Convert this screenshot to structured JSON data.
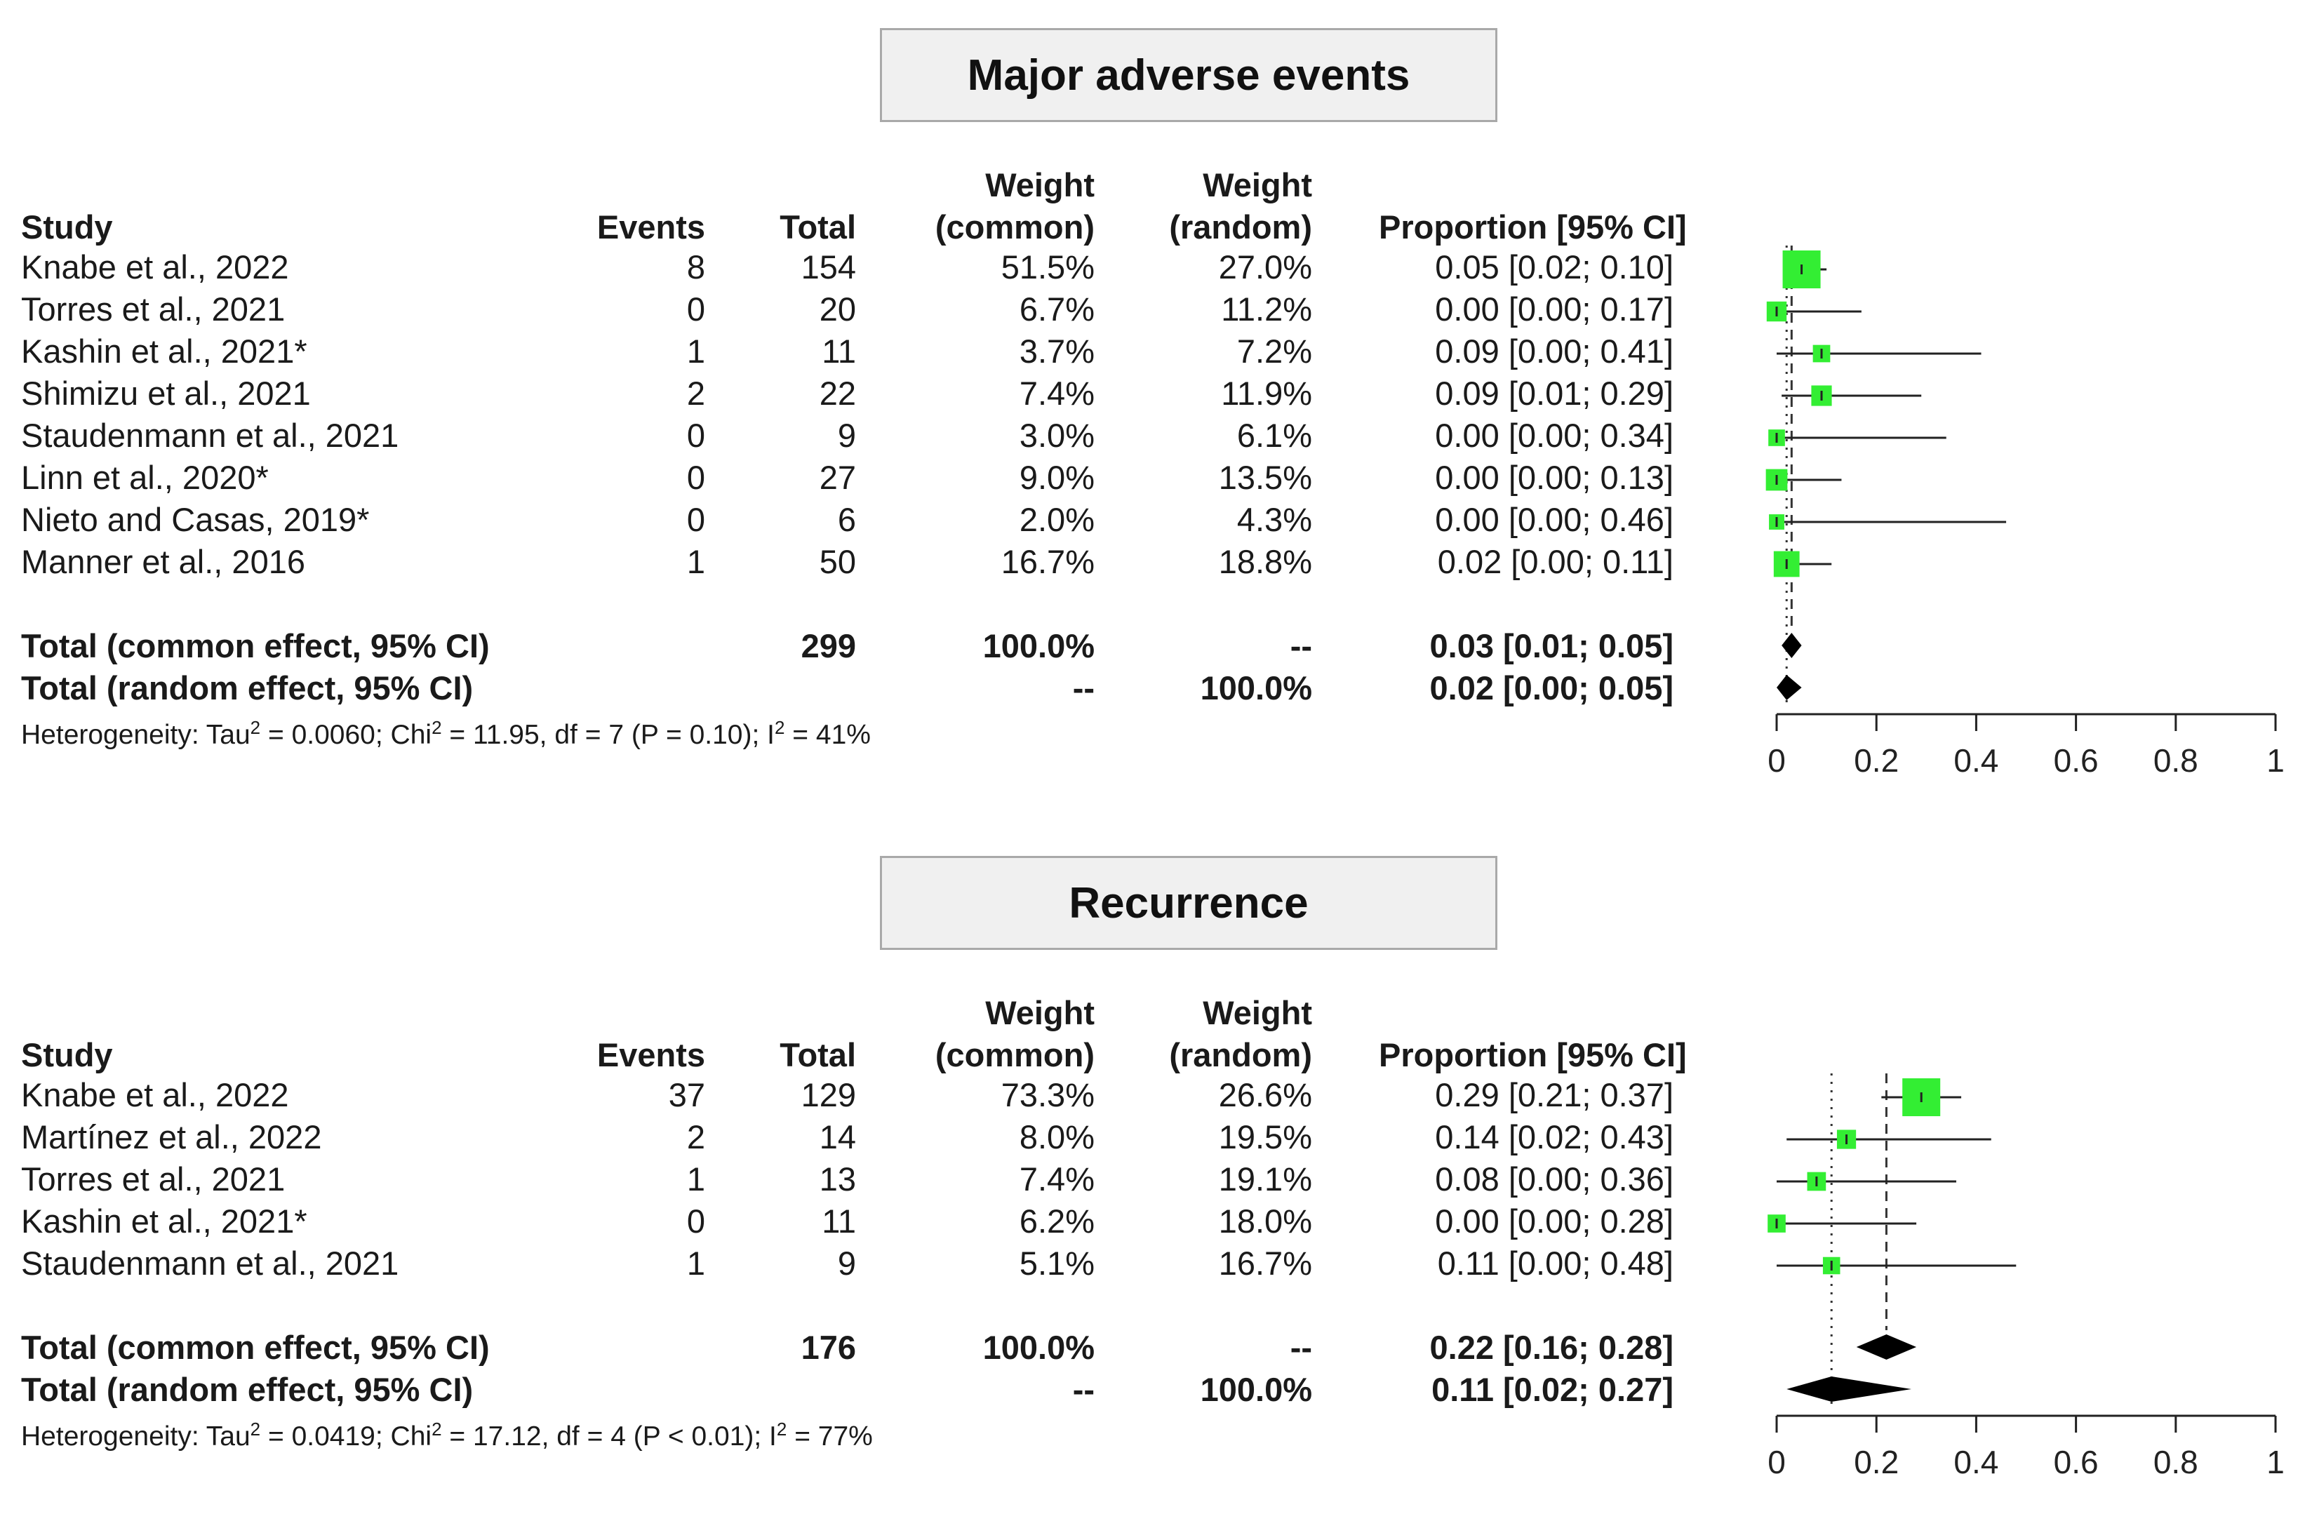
{
  "columns": {
    "study": "Study",
    "events": "Events",
    "total": "Total",
    "weight": "Weight",
    "common": "(common)",
    "random": "(random)",
    "proportion": "Proportion [95% CI]"
  },
  "panels": [
    {
      "title": "Major adverse events",
      "rows": [
        {
          "study": "Knabe et al., 2022",
          "events": "8",
          "total": "154",
          "w_common": "51.5%",
          "w_random": "27.0%",
          "ci": "0.05 [0.02; 0.10]"
        },
        {
          "study": "Torres et al., 2021",
          "events": "0",
          "total": "20",
          "w_common": "6.7%",
          "w_random": "11.2%",
          "ci": "0.00 [0.00; 0.17]"
        },
        {
          "study": "Kashin et al., 2021*",
          "events": "1",
          "total": "11",
          "w_common": "3.7%",
          "w_random": "7.2%",
          "ci": "0.09 [0.00; 0.41]"
        },
        {
          "study": "Shimizu et al., 2021",
          "events": "2",
          "total": "22",
          "w_common": "7.4%",
          "w_random": "11.9%",
          "ci": "0.09 [0.01; 0.29]"
        },
        {
          "study": "Staudenmann et al., 2021",
          "events": "0",
          "total": "9",
          "w_common": "3.0%",
          "w_random": "6.1%",
          "ci": "0.00 [0.00; 0.34]"
        },
        {
          "study": "Linn et al., 2020*",
          "events": "0",
          "total": "27",
          "w_common": "9.0%",
          "w_random": "13.5%",
          "ci": "0.00 [0.00; 0.13]"
        },
        {
          "study": "Nieto and Casas, 2019*",
          "events": "0",
          "total": "6",
          "w_common": "2.0%",
          "w_random": "4.3%",
          "ci": "0.00 [0.00; 0.46]"
        },
        {
          "study": "Manner et al., 2016",
          "events": "1",
          "total": "50",
          "w_common": "16.7%",
          "w_random": "18.8%",
          "ci": "0.02 [0.00; 0.11]"
        }
      ],
      "common": {
        "label": "Total (common effect, 95% CI)",
        "total": "299",
        "w_common": "100.0%",
        "w_random": "--",
        "ci": "0.03 [0.01; 0.05]"
      },
      "random": {
        "label": "Total (random effect, 95% CI)",
        "w_common": "--",
        "w_random": "100.0%",
        "ci": "0.02 [0.00; 0.05]"
      },
      "heterogeneity": {
        "prefix": "Heterogeneity: Tau",
        "tau2": "2",
        "tau2_val": " = 0.0060; Chi",
        "chi2": "2",
        "chi2_val": " = 11.95, df = 7 (P = 0.10); I",
        "i2": "2",
        "i2_val": " = 41%"
      }
    },
    {
      "title": "Recurrence",
      "rows": [
        {
          "study": "Knabe et al., 2022",
          "events": "37",
          "total": "129",
          "w_common": "73.3%",
          "w_random": "26.6%",
          "ci": "0.29 [0.21; 0.37]"
        },
        {
          "study": "Martínez et al., 2022",
          "events": "2",
          "total": "14",
          "w_common": "8.0%",
          "w_random": "19.5%",
          "ci": "0.14 [0.02; 0.43]"
        },
        {
          "study": "Torres et al., 2021",
          "events": "1",
          "total": "13",
          "w_common": "7.4%",
          "w_random": "19.1%",
          "ci": "0.08 [0.00; 0.36]"
        },
        {
          "study": "Kashin et al., 2021*",
          "events": "0",
          "total": "11",
          "w_common": "6.2%",
          "w_random": "18.0%",
          "ci": "0.00 [0.00; 0.28]"
        },
        {
          "study": "Staudenmann et al., 2021",
          "events": "1",
          "total": "9",
          "w_common": "5.1%",
          "w_random": "16.7%",
          "ci": "0.11 [0.00; 0.48]"
        }
      ],
      "common": {
        "label": "Total (common effect, 95% CI)",
        "total": "176",
        "w_common": "100.0%",
        "w_random": "--",
        "ci": "0.22 [0.16; 0.28]"
      },
      "random": {
        "label": "Total (random effect, 95% CI)",
        "w_common": "--",
        "w_random": "100.0%",
        "ci": "0.11 [0.02; 0.27]"
      },
      "heterogeneity": {
        "prefix": "Heterogeneity: Tau",
        "tau2": "2",
        "tau2_val": " = 0.0419; Chi",
        "chi2": "2",
        "chi2_val": " = 17.12, df = 4 (P < 0.01); I",
        "i2": "2",
        "i2_val": " = 77%"
      }
    }
  ],
  "chart_data": [
    {
      "type": "forest",
      "title": "Major adverse events",
      "xlim": [
        0,
        1
      ],
      "ticks": [
        "0",
        "0.2",
        "0.4",
        "0.6",
        "0.8",
        "1"
      ],
      "tick_values": [
        0,
        0.2,
        0.4,
        0.6,
        0.8,
        1
      ],
      "studies": [
        {
          "name": "Knabe et al., 2022",
          "est": 0.05,
          "lo": 0.02,
          "hi": 0.1,
          "weight": 51.5
        },
        {
          "name": "Torres et al., 2021",
          "est": 0.0,
          "lo": 0.0,
          "hi": 0.17,
          "weight": 6.7
        },
        {
          "name": "Kashin et al., 2021*",
          "est": 0.09,
          "lo": 0.0,
          "hi": 0.41,
          "weight": 3.7
        },
        {
          "name": "Shimizu et al., 2021",
          "est": 0.09,
          "lo": 0.01,
          "hi": 0.29,
          "weight": 7.4
        },
        {
          "name": "Staudenmann et al., 2021",
          "est": 0.0,
          "lo": 0.0,
          "hi": 0.34,
          "weight": 3.0
        },
        {
          "name": "Linn et al., 2020*",
          "est": 0.0,
          "lo": 0.0,
          "hi": 0.13,
          "weight": 9.0
        },
        {
          "name": "Nieto and Casas, 2019*",
          "est": 0.0,
          "lo": 0.0,
          "hi": 0.46,
          "weight": 2.0
        },
        {
          "name": "Manner et al., 2016",
          "est": 0.02,
          "lo": 0.0,
          "hi": 0.11,
          "weight": 16.7
        }
      ],
      "common": {
        "est": 0.03,
        "lo": 0.01,
        "hi": 0.05
      },
      "random": {
        "est": 0.02,
        "lo": 0.0,
        "hi": 0.05
      },
      "square_color": "#33ee33",
      "diamond_color": "#000000"
    },
    {
      "type": "forest",
      "title": "Recurrence",
      "xlim": [
        0,
        1
      ],
      "ticks": [
        "0",
        "0.2",
        "0.4",
        "0.6",
        "0.8",
        "1"
      ],
      "tick_values": [
        0,
        0.2,
        0.4,
        0.6,
        0.8,
        1
      ],
      "studies": [
        {
          "name": "Knabe et al., 2022",
          "est": 0.29,
          "lo": 0.21,
          "hi": 0.37,
          "weight": 73.3
        },
        {
          "name": "Martínez et al., 2022",
          "est": 0.14,
          "lo": 0.02,
          "hi": 0.43,
          "weight": 8.0
        },
        {
          "name": "Torres et al., 2021",
          "est": 0.08,
          "lo": 0.0,
          "hi": 0.36,
          "weight": 7.4
        },
        {
          "name": "Kashin et al., 2021*",
          "est": 0.0,
          "lo": 0.0,
          "hi": 0.28,
          "weight": 6.2
        },
        {
          "name": "Staudenmann et al., 2021",
          "est": 0.11,
          "lo": 0.0,
          "hi": 0.48,
          "weight": 5.1
        }
      ],
      "common": {
        "est": 0.22,
        "lo": 0.16,
        "hi": 0.28
      },
      "random": {
        "est": 0.11,
        "lo": 0.02,
        "hi": 0.27
      },
      "square_color": "#33ee33",
      "diamond_color": "#000000"
    }
  ]
}
